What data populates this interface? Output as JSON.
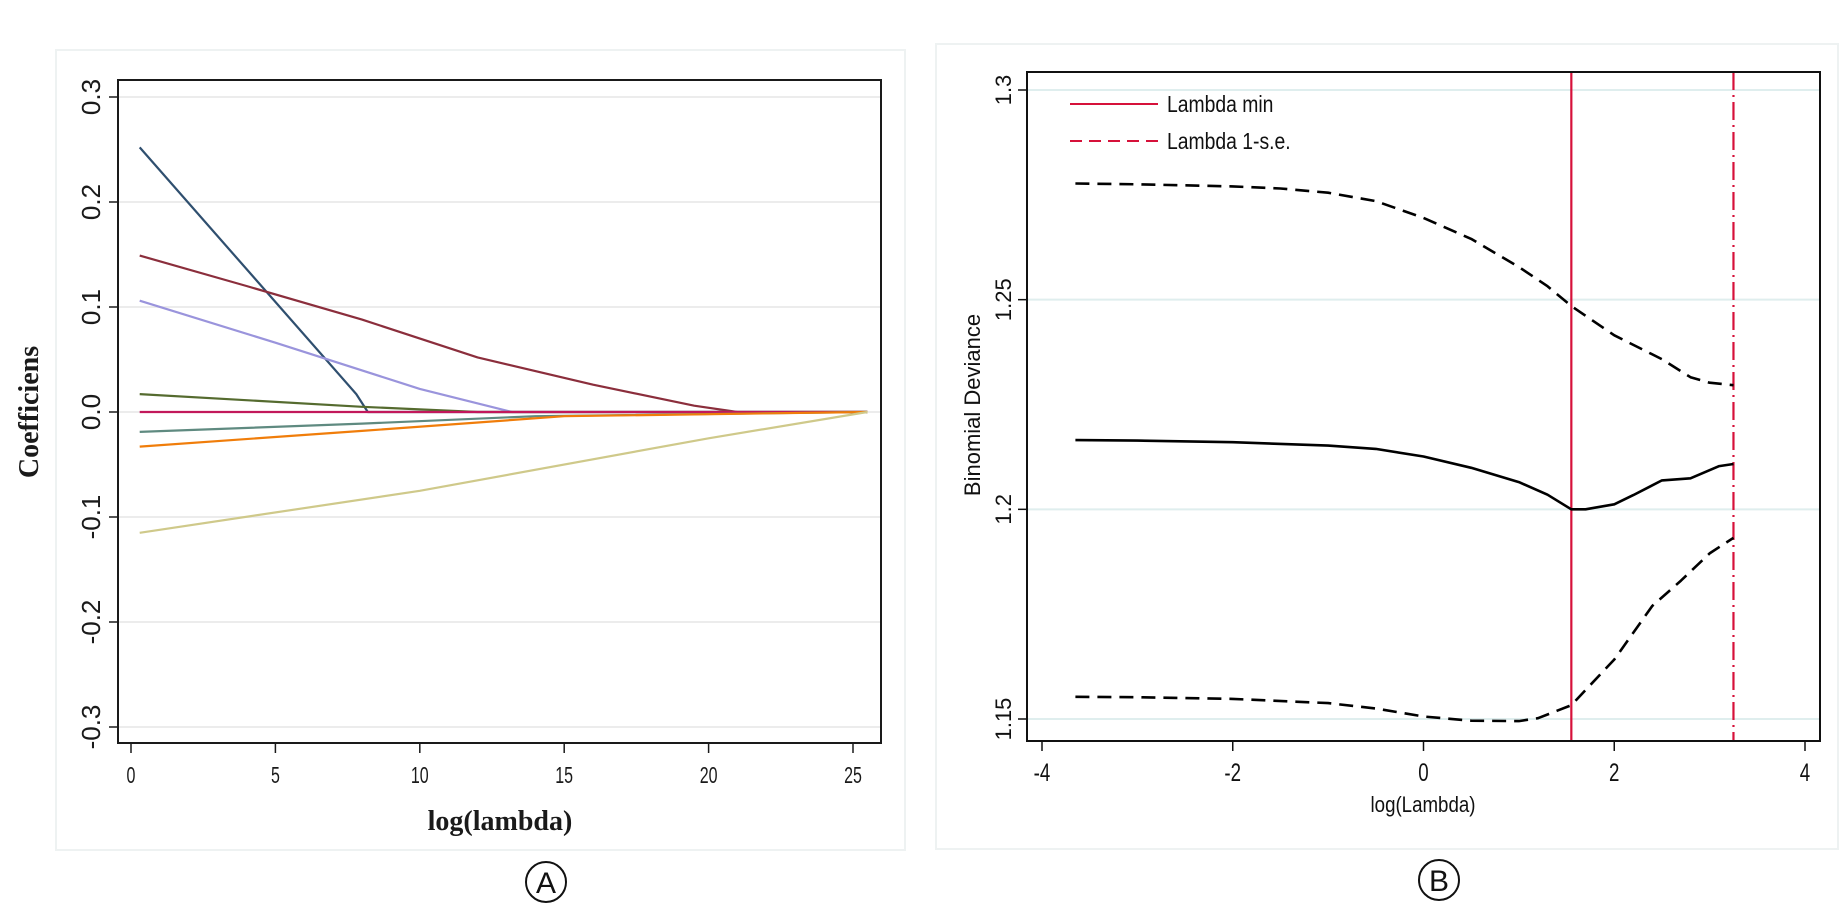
{
  "chart_data": [
    {
      "panel_label": "A",
      "type": "line",
      "title": "",
      "xlabel": "log(lambda)",
      "ylabel": "Coefficiens",
      "xlim": [
        -0.5,
        26.2
      ],
      "ylim": [
        -0.32,
        0.32
      ],
      "x_ticks": [
        0,
        5,
        10,
        15,
        20,
        25
      ],
      "x_tick_labels": [
        "0",
        "5",
        "10",
        "15",
        "20",
        "25"
      ],
      "y_ticks": [
        -0.3,
        -0.2,
        -0.1,
        0.0,
        0.1,
        0.2,
        0.3
      ],
      "y_tick_labels": [
        "-0.3",
        "-0.2",
        "-0.1",
        "0.0",
        "0.1",
        "0.2",
        "0.3"
      ],
      "grid": true,
      "legend": "none",
      "series": [
        {
          "name": "coef-1",
          "color": "#2f4f6f",
          "x": [
            0.3,
            7.8,
            8.2,
            25.5
          ],
          "y": [
            0.252,
            0.017,
            0.0,
            0.0
          ]
        },
        {
          "name": "coef-2",
          "color": "#8b2e3c",
          "x": [
            0.3,
            4,
            8,
            12,
            16,
            19.5,
            21,
            25.5
          ],
          "y": [
            0.149,
            0.12,
            0.088,
            0.052,
            0.026,
            0.006,
            0.0,
            0.0
          ]
        },
        {
          "name": "coef-3",
          "color": "#9a94dc",
          "x": [
            0.3,
            5,
            10,
            13.2,
            25.5
          ],
          "y": [
            0.106,
            0.066,
            0.022,
            0.0,
            0.0
          ]
        },
        {
          "name": "coef-4",
          "color": "#556b2f",
          "x": [
            0.3,
            8,
            12,
            25.5
          ],
          "y": [
            0.017,
            0.005,
            0.0,
            0.0
          ]
        },
        {
          "name": "coef-5",
          "color": "#c2185b",
          "x": [
            0.3,
            25.5
          ],
          "y": [
            0.0,
            0.0
          ]
        },
        {
          "name": "coef-6",
          "color": "#5f8a80",
          "x": [
            0.3,
            8,
            14,
            25.5
          ],
          "y": [
            -0.019,
            -0.011,
            -0.004,
            0.0
          ]
        },
        {
          "name": "coef-7",
          "color": "#f07d0a",
          "x": [
            0.3,
            8,
            15,
            25.5
          ],
          "y": [
            -0.033,
            -0.018,
            -0.004,
            0.0
          ]
        },
        {
          "name": "coef-8",
          "color": "#cfc98a",
          "x": [
            0.3,
            10,
            20,
            25.5
          ],
          "y": [
            -0.115,
            -0.075,
            -0.025,
            0.0
          ]
        }
      ]
    },
    {
      "panel_label": "B",
      "type": "line",
      "title": "",
      "xlabel": "log(Lambda)",
      "ylabel": "Binomial Deviance",
      "xlim": [
        -4.15,
        4.15
      ],
      "ylim": [
        1.1445,
        1.302
      ],
      "x_ticks": [
        -4,
        -2,
        0,
        2,
        4
      ],
      "x_tick_labels": [
        "-4",
        "-2",
        "0",
        "2",
        "4"
      ],
      "y_ticks": [
        1.15,
        1.2,
        1.25,
        1.3
      ],
      "y_tick_labels": [
        "1.15",
        "1.2",
        "1.25",
        "1.3"
      ],
      "grid": true,
      "legend_position": "top-left",
      "legend": [
        {
          "label": "Lambda min",
          "color": "#d6113a",
          "style": "solid"
        },
        {
          "label": "Lambda 1-s.e.",
          "color": "#d6113a",
          "style": "dashed"
        }
      ],
      "vlines": [
        {
          "name": "lambda-min",
          "x": 1.55,
          "color": "#d6113a",
          "style": "solid"
        },
        {
          "name": "lambda-1se",
          "x": 3.25,
          "color": "#d6113a",
          "style": "dashdot"
        }
      ],
      "series": [
        {
          "name": "mean-deviance",
          "color": "#000000",
          "style": "solid",
          "x": [
            -3.65,
            -3,
            -2,
            -1,
            -0.5,
            0,
            0.5,
            1,
            1.3,
            1.55,
            1.7,
            2.0,
            2.2,
            2.5,
            2.8,
            3.1,
            3.25
          ],
          "y": [
            1.2165,
            1.2164,
            1.216,
            1.2152,
            1.2144,
            1.2126,
            1.2099,
            1.2065,
            1.2035,
            1.2,
            1.2,
            1.2012,
            1.2034,
            1.2069,
            1.2074,
            1.2103,
            1.2108
          ]
        },
        {
          "name": "upper-se",
          "color": "#000000",
          "style": "dashed",
          "x": [
            -3.65,
            -3,
            -2,
            -1.5,
            -1,
            -0.5,
            0,
            0.5,
            1,
            1.3,
            1.55,
            2.0,
            2.5,
            2.8,
            3.0,
            3.25
          ],
          "y": [
            1.2777,
            1.2775,
            1.277,
            1.2765,
            1.2755,
            1.2735,
            1.2695,
            1.2645,
            1.2578,
            1.2532,
            1.2485,
            1.2415,
            1.2358,
            1.2315,
            1.2302,
            1.2296
          ]
        },
        {
          "name": "lower-se",
          "color": "#000000",
          "style": "dashed",
          "x": [
            -3.65,
            -3,
            -2,
            -1,
            -0.5,
            0,
            0.5,
            1,
            1.2,
            1.55,
            2.0,
            2.4,
            2.7,
            3.0,
            3.25
          ],
          "y": [
            1.1553,
            1.1552,
            1.1548,
            1.1538,
            1.1525,
            1.1506,
            1.1496,
            1.1495,
            1.1502,
            1.1533,
            1.1642,
            1.177,
            1.183,
            1.1895,
            1.1932
          ]
        }
      ]
    }
  ],
  "panel_labels": [
    "A",
    "B"
  ]
}
